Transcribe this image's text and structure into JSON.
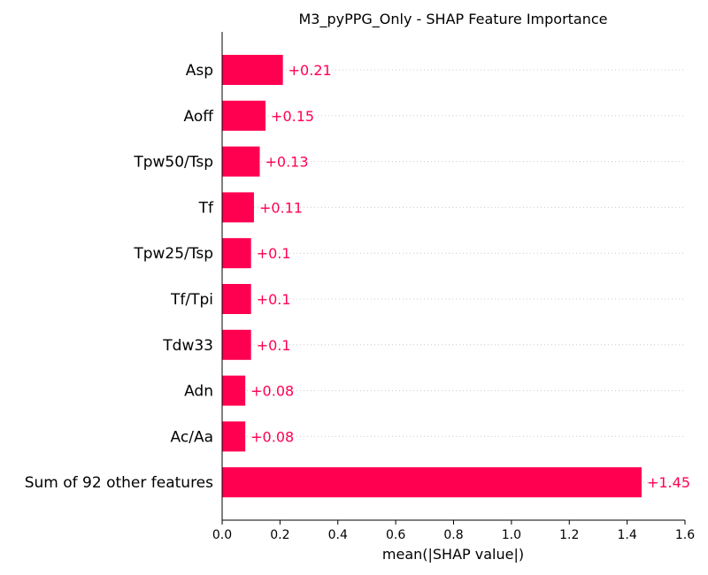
{
  "chart_data": {
    "type": "bar",
    "orientation": "horizontal",
    "title": "M3_pyPPG_Only - SHAP Feature Importance",
    "xlabel": "mean(|SHAP value|)",
    "ylabel": "",
    "xlim": [
      0,
      1.6
    ],
    "xticks": [
      "0.0",
      "0.2",
      "0.4",
      "0.6",
      "0.8",
      "1.0",
      "1.2",
      "1.4",
      "1.6"
    ],
    "xtick_values": [
      0,
      0.2,
      0.4,
      0.6,
      0.8,
      1.0,
      1.2,
      1.4,
      1.6
    ],
    "categories": [
      "Asp",
      "Aoff",
      "Tpw50/Tsp",
      "Tf",
      "Tpw25/Tsp",
      "Tf/Tpi",
      "Tdw33",
      "Adn",
      "Ac/Aa",
      "Sum of 92 other features"
    ],
    "values": [
      0.21,
      0.15,
      0.13,
      0.11,
      0.1,
      0.1,
      0.1,
      0.08,
      0.08,
      1.45
    ],
    "value_labels": [
      "+0.21",
      "+0.15",
      "+0.13",
      "+0.11",
      "+0.1",
      "+0.1",
      "+0.1",
      "+0.08",
      "+0.08",
      "+1.45"
    ],
    "bar_color": "#ff0051",
    "grid": "dotted horizontal guide lines",
    "legend": "none"
  }
}
